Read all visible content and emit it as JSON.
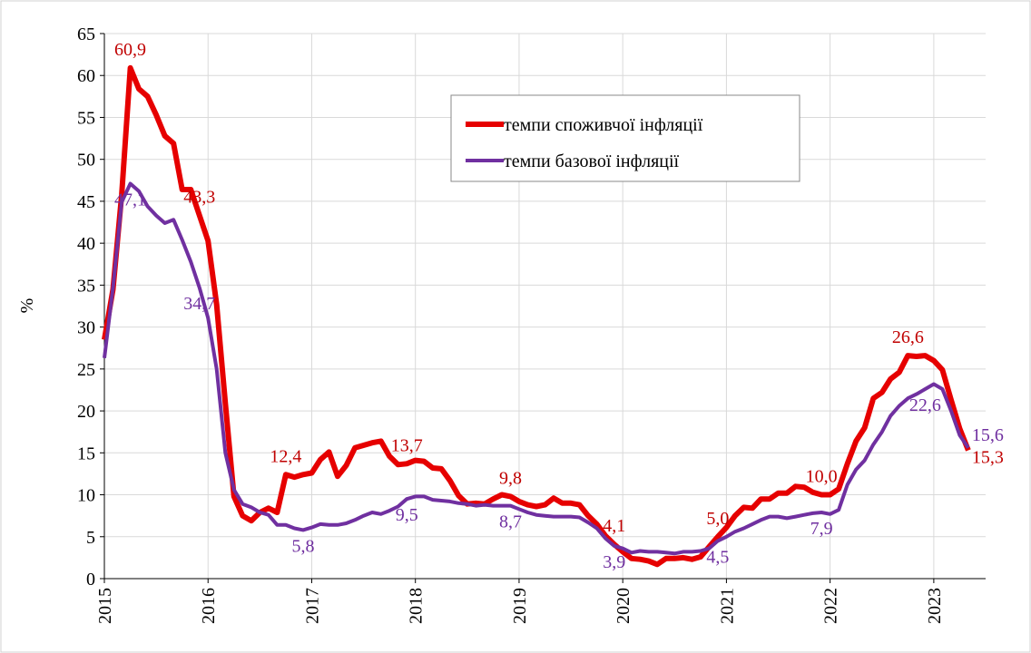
{
  "chart_data": {
    "type": "line",
    "ylabel": "%",
    "x": [
      2015,
      2015.083,
      2015.167,
      2015.25,
      2015.333,
      2015.417,
      2015.5,
      2015.583,
      2015.667,
      2015.75,
      2015.833,
      2015.917,
      2016,
      2016.083,
      2016.167,
      2016.25,
      2016.333,
      2016.417,
      2016.5,
      2016.583,
      2016.667,
      2016.75,
      2016.833,
      2016.917,
      2017,
      2017.083,
      2017.167,
      2017.25,
      2017.333,
      2017.417,
      2017.5,
      2017.583,
      2017.667,
      2017.75,
      2017.833,
      2017.917,
      2018,
      2018.083,
      2018.167,
      2018.25,
      2018.333,
      2018.417,
      2018.5,
      2018.583,
      2018.667,
      2018.75,
      2018.833,
      2018.917,
      2019,
      2019.083,
      2019.167,
      2019.25,
      2019.333,
      2019.417,
      2019.5,
      2019.583,
      2019.667,
      2019.75,
      2019.833,
      2019.917,
      2020,
      2020.083,
      2020.167,
      2020.25,
      2020.333,
      2020.417,
      2020.5,
      2020.583,
      2020.667,
      2020.75,
      2020.833,
      2020.917,
      2021,
      2021.083,
      2021.167,
      2021.25,
      2021.333,
      2021.417,
      2021.5,
      2021.583,
      2021.667,
      2021.75,
      2021.833,
      2021.917,
      2022,
      2022.083,
      2022.167,
      2022.25,
      2022.333,
      2022.417,
      2022.5,
      2022.583,
      2022.667,
      2022.75,
      2022.833,
      2022.917,
      2023,
      2023.083,
      2023.167,
      2023.25,
      2023.333
    ],
    "series": [
      {
        "name": "темпи споживчої інфляції",
        "color": "#e60000",
        "label_color": "#c00000",
        "values": [
          28.5,
          34.5,
          45.8,
          60.9,
          58.4,
          57.5,
          55.3,
          52.8,
          51.9,
          46.4,
          46.4,
          43.3,
          40.3,
          32.7,
          20.9,
          9.8,
          7.5,
          6.9,
          7.9,
          8.4,
          7.9,
          12.4,
          12.1,
          12.4,
          12.6,
          14.2,
          15.1,
          12.2,
          13.5,
          15.6,
          15.9,
          16.2,
          16.4,
          14.6,
          13.6,
          13.7,
          14.1,
          14.0,
          13.2,
          13.1,
          11.7,
          9.9,
          8.9,
          9.0,
          8.9,
          9.5,
          10.0,
          9.8,
          9.2,
          8.8,
          8.6,
          8.8,
          9.6,
          9.0,
          9.0,
          8.8,
          7.5,
          6.5,
          5.1,
          4.1,
          3.2,
          2.4,
          2.3,
          2.1,
          1.7,
          2.4,
          2.4,
          2.5,
          2.3,
          2.6,
          3.8,
          5.0,
          6.1,
          7.5,
          8.5,
          8.4,
          9.5,
          9.5,
          10.2,
          10.2,
          11.0,
          10.9,
          10.3,
          10.0,
          10.0,
          10.7,
          13.7,
          16.4,
          18.0,
          21.5,
          22.2,
          23.8,
          24.6,
          26.6,
          26.5,
          26.6,
          26.0,
          24.9,
          21.3,
          17.9,
          15.3
        ],
        "value_labels": [
          null,
          null,
          null,
          "60,9",
          null,
          null,
          null,
          null,
          null,
          null,
          null,
          "43,3",
          null,
          null,
          null,
          null,
          null,
          null,
          null,
          null,
          null,
          "12,4",
          null,
          null,
          null,
          null,
          null,
          null,
          null,
          null,
          null,
          null,
          null,
          null,
          null,
          "13,7",
          null,
          null,
          null,
          null,
          null,
          null,
          null,
          null,
          null,
          null,
          null,
          "9,8",
          null,
          null,
          null,
          null,
          null,
          null,
          null,
          null,
          null,
          null,
          null,
          "4,1",
          null,
          null,
          null,
          null,
          null,
          null,
          null,
          null,
          null,
          null,
          null,
          "5,0",
          null,
          null,
          null,
          null,
          null,
          null,
          null,
          null,
          null,
          null,
          null,
          "10,0",
          null,
          null,
          null,
          null,
          null,
          null,
          null,
          null,
          null,
          "26,6",
          null,
          null,
          null,
          null,
          null,
          null,
          "15,3"
        ]
      },
      {
        "name": "темпи базової інфляції",
        "color": "#7030a0",
        "label_color": "#7030a0",
        "values": [
          26.3,
          34.7,
          44.9,
          47.1,
          46.2,
          44.4,
          43.3,
          42.4,
          42.8,
          40.4,
          37.8,
          34.7,
          31.1,
          25.0,
          15.0,
          10.6,
          8.9,
          8.5,
          7.9,
          7.6,
          6.4,
          6.4,
          6.0,
          5.8,
          6.1,
          6.5,
          6.4,
          6.4,
          6.6,
          7.0,
          7.5,
          7.9,
          7.7,
          8.1,
          8.6,
          9.5,
          9.8,
          9.8,
          9.4,
          9.3,
          9.2,
          9.0,
          8.9,
          8.7,
          8.8,
          8.7,
          8.7,
          8.7,
          8.3,
          7.9,
          7.6,
          7.5,
          7.4,
          7.4,
          7.4,
          7.3,
          6.7,
          6.0,
          4.8,
          3.9,
          3.6,
          3.1,
          3.3,
          3.2,
          3.2,
          3.1,
          3.0,
          3.2,
          3.2,
          3.3,
          3.6,
          4.5,
          5.0,
          5.6,
          6.0,
          6.5,
          7.0,
          7.4,
          7.4,
          7.2,
          7.4,
          7.6,
          7.8,
          7.9,
          7.7,
          8.2,
          11.2,
          13.0,
          14.1,
          16.0,
          17.5,
          19.4,
          20.6,
          21.5,
          22.0,
          22.6,
          23.2,
          22.6,
          20.0,
          17.1,
          15.6
        ],
        "value_labels": [
          null,
          null,
          null,
          "47,1",
          null,
          null,
          null,
          null,
          null,
          null,
          null,
          "34,7",
          null,
          null,
          null,
          null,
          null,
          null,
          null,
          null,
          null,
          null,
          null,
          "5,8",
          null,
          null,
          null,
          null,
          null,
          null,
          null,
          null,
          null,
          null,
          null,
          "9,5",
          null,
          null,
          null,
          null,
          null,
          null,
          null,
          null,
          null,
          null,
          null,
          "8,7",
          null,
          null,
          null,
          null,
          null,
          null,
          null,
          null,
          null,
          null,
          null,
          "3,9",
          null,
          null,
          null,
          null,
          null,
          null,
          null,
          null,
          null,
          null,
          null,
          "4,5",
          null,
          null,
          null,
          null,
          null,
          null,
          null,
          null,
          null,
          null,
          null,
          "7,9",
          null,
          null,
          null,
          null,
          null,
          null,
          null,
          null,
          null,
          null,
          null,
          "22,6",
          null,
          null,
          null,
          null,
          "15,6"
        ]
      }
    ],
    "xlim": [
      2015,
      2023.5
    ],
    "xticks": [
      2015,
      2016,
      2017,
      2018,
      2019,
      2020,
      2021,
      2022,
      2023
    ],
    "ylim": [
      0,
      65
    ],
    "yticks": [
      0,
      5,
      10,
      15,
      20,
      25,
      30,
      35,
      40,
      45,
      50,
      55,
      60,
      65
    ],
    "grid": true,
    "legend": "upper center"
  }
}
